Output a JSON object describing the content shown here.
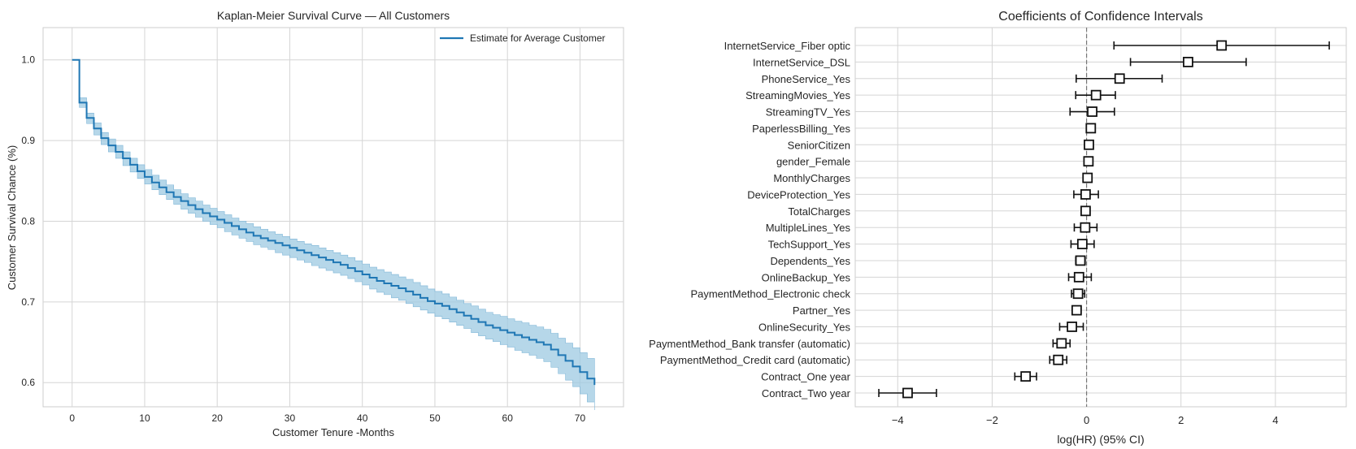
{
  "chart_data": [
    {
      "type": "line",
      "title": "Kaplan-Meier Survival Curve — All Customers",
      "xlabel": "Customer Tenure -Months",
      "ylabel": "Customer Survival Chance (%)",
      "xlim": [
        -4,
        76
      ],
      "ylim": [
        0.57,
        1.04
      ],
      "xticks": [
        0,
        10,
        20,
        30,
        40,
        50,
        60,
        70
      ],
      "yticks": [
        0.6,
        0.7,
        0.8,
        0.9,
        1.0
      ],
      "ytick_labels": [
        "0.6",
        "0.7",
        "0.8",
        "0.9",
        "1.0"
      ],
      "grid": true,
      "legend": "top-right",
      "series": [
        {
          "name": "Estimate for Average Customer",
          "color": "#1f77b4",
          "band_color": "#9ecae1",
          "step": true,
          "x": [
            0,
            1,
            2,
            3,
            4,
            5,
            6,
            7,
            8,
            9,
            10,
            11,
            12,
            13,
            14,
            15,
            16,
            17,
            18,
            19,
            20,
            21,
            22,
            23,
            24,
            25,
            26,
            27,
            28,
            29,
            30,
            31,
            32,
            33,
            34,
            35,
            36,
            37,
            38,
            39,
            40,
            41,
            42,
            43,
            44,
            45,
            46,
            47,
            48,
            49,
            50,
            51,
            52,
            53,
            54,
            55,
            56,
            57,
            58,
            59,
            60,
            61,
            62,
            63,
            64,
            65,
            66,
            67,
            68,
            69,
            70,
            71,
            72
          ],
          "y": [
            1.0,
            0.947,
            0.928,
            0.915,
            0.903,
            0.894,
            0.886,
            0.878,
            0.87,
            0.862,
            0.855,
            0.848,
            0.842,
            0.836,
            0.83,
            0.825,
            0.82,
            0.815,
            0.81,
            0.806,
            0.802,
            0.798,
            0.794,
            0.79,
            0.786,
            0.782,
            0.779,
            0.776,
            0.773,
            0.77,
            0.767,
            0.764,
            0.761,
            0.758,
            0.755,
            0.752,
            0.749,
            0.746,
            0.742,
            0.738,
            0.734,
            0.73,
            0.726,
            0.723,
            0.72,
            0.717,
            0.713,
            0.709,
            0.705,
            0.701,
            0.698,
            0.695,
            0.691,
            0.687,
            0.683,
            0.679,
            0.675,
            0.671,
            0.668,
            0.665,
            0.662,
            0.659,
            0.656,
            0.653,
            0.65,
            0.647,
            0.641,
            0.634,
            0.627,
            0.62,
            0.613,
            0.605,
            0.597
          ],
          "lower": [
            1.0,
            0.941,
            0.921,
            0.907,
            0.895,
            0.886,
            0.878,
            0.869,
            0.861,
            0.853,
            0.846,
            0.839,
            0.833,
            0.827,
            0.821,
            0.815,
            0.81,
            0.805,
            0.8,
            0.796,
            0.792,
            0.787,
            0.783,
            0.779,
            0.775,
            0.771,
            0.768,
            0.765,
            0.761,
            0.758,
            0.755,
            0.752,
            0.749,
            0.745,
            0.742,
            0.739,
            0.736,
            0.733,
            0.729,
            0.725,
            0.721,
            0.716,
            0.712,
            0.709,
            0.705,
            0.702,
            0.698,
            0.694,
            0.69,
            0.686,
            0.682,
            0.679,
            0.675,
            0.671,
            0.667,
            0.662,
            0.658,
            0.654,
            0.651,
            0.647,
            0.644,
            0.64,
            0.637,
            0.634,
            0.63,
            0.626,
            0.619,
            0.611,
            0.603,
            0.595,
            0.586,
            0.576,
            0.566
          ],
          "upper": [
            1.0,
            0.953,
            0.934,
            0.922,
            0.91,
            0.902,
            0.894,
            0.886,
            0.878,
            0.87,
            0.864,
            0.857,
            0.851,
            0.845,
            0.839,
            0.834,
            0.829,
            0.825,
            0.82,
            0.816,
            0.812,
            0.808,
            0.804,
            0.8,
            0.797,
            0.793,
            0.79,
            0.787,
            0.784,
            0.781,
            0.778,
            0.775,
            0.772,
            0.77,
            0.767,
            0.764,
            0.761,
            0.758,
            0.755,
            0.751,
            0.747,
            0.743,
            0.74,
            0.737,
            0.734,
            0.731,
            0.728,
            0.724,
            0.72,
            0.716,
            0.713,
            0.71,
            0.706,
            0.702,
            0.698,
            0.695,
            0.691,
            0.687,
            0.684,
            0.682,
            0.679,
            0.676,
            0.674,
            0.671,
            0.669,
            0.666,
            0.661,
            0.655,
            0.649,
            0.643,
            0.637,
            0.63,
            0.622
          ]
        }
      ]
    },
    {
      "type": "scatter",
      "title": "Coefficients of Confidence Intervals",
      "xlabel": "log(HR) (95% CI)",
      "ylabel": "",
      "xlim": [
        -4.9,
        5.5
      ],
      "xticks": [
        -4,
        -2,
        0,
        2,
        4
      ],
      "xtick_labels": [
        "−4",
        "−2",
        "0",
        "2",
        "4"
      ],
      "reference_line_x": 0,
      "grid": true,
      "categories": [
        "InternetService_Fiber optic",
        "InternetService_DSL",
        "PhoneService_Yes",
        "StreamingMovies_Yes",
        "StreamingTV_Yes",
        "PaperlessBilling_Yes",
        "SeniorCitizen",
        "gender_Female",
        "MonthlyCharges",
        "DeviceProtection_Yes",
        "TotalCharges",
        "MultipleLines_Yes",
        "TechSupport_Yes",
        "Dependents_Yes",
        "OnlineBackup_Yes",
        "PaymentMethod_Electronic check",
        "Partner_Yes",
        "OnlineSecurity_Yes",
        "PaymentMethod_Bank transfer (automatic)",
        "PaymentMethod_Credit card (automatic)",
        "Contract_One year",
        "Contract_Two year"
      ],
      "coef": [
        2.86,
        2.15,
        0.7,
        0.2,
        0.12,
        0.09,
        0.05,
        0.04,
        0.02,
        -0.02,
        -0.02,
        -0.03,
        -0.09,
        -0.13,
        -0.16,
        -0.18,
        -0.21,
        -0.31,
        -0.53,
        -0.6,
        -1.29,
        -3.79
      ],
      "lower": [
        0.58,
        0.93,
        -0.22,
        -0.23,
        -0.35,
        0.0,
        -0.04,
        -0.03,
        -0.02,
        -0.27,
        -0.04,
        -0.26,
        -0.33,
        -0.23,
        -0.38,
        -0.32,
        -0.25,
        -0.57,
        -0.71,
        -0.78,
        -1.52,
        -4.4
      ],
      "upper": [
        5.14,
        3.38,
        1.6,
        0.61,
        0.59,
        0.18,
        0.13,
        0.1,
        0.06,
        0.25,
        -0.01,
        0.22,
        0.16,
        -0.03,
        0.1,
        -0.04,
        -0.17,
        -0.07,
        -0.35,
        -0.42,
        -1.06,
        -3.18
      ]
    }
  ]
}
